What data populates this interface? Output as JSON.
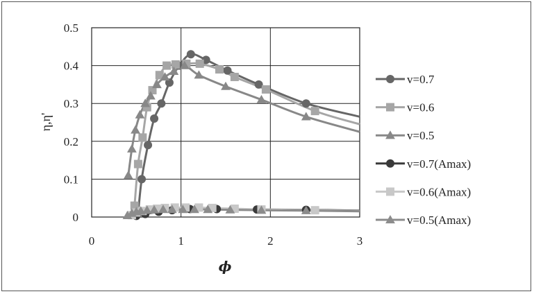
{
  "chart_data": {
    "type": "line",
    "xlabel": "ϕ",
    "ylabel": "η,η'",
    "xlim": [
      0,
      3
    ],
    "ylim": [
      0,
      0.5
    ],
    "xticks": [
      "0",
      "1",
      "2",
      "3"
    ],
    "yticks": [
      "0",
      "0.1",
      "0.2",
      "0.3",
      "0.4",
      "0.5"
    ],
    "grid": true,
    "legend": "right",
    "series": [
      {
        "name": "v=0.7",
        "color": "#666666",
        "marker": "circle",
        "x": [
          0.52,
          0.56,
          0.63,
          0.7,
          0.78,
          0.87,
          0.98,
          1.11,
          1.28,
          1.52,
          1.87,
          2.4
        ],
        "y": [
          0.01,
          0.1,
          0.19,
          0.26,
          0.3,
          0.355,
          0.4,
          0.43,
          0.415,
          0.387,
          0.35,
          0.3
        ],
        "curve_x": [
          0.52,
          0.56,
          0.63,
          0.7,
          0.78,
          0.87,
          0.98,
          1.11,
          1.28,
          1.52,
          1.87,
          2.4,
          3.0
        ],
        "curve_y": [
          0.01,
          0.1,
          0.19,
          0.26,
          0.3,
          0.355,
          0.4,
          0.43,
          0.415,
          0.387,
          0.35,
          0.3,
          0.265
        ]
      },
      {
        "name": "v=0.6",
        "color": "#a6a6a6",
        "marker": "square",
        "x": [
          0.48,
          0.52,
          0.57,
          0.62,
          0.68,
          0.76,
          0.84,
          0.94,
          1.06,
          1.21,
          1.43,
          1.6,
          1.95,
          2.5
        ],
        "y": [
          0.03,
          0.14,
          0.21,
          0.29,
          0.335,
          0.375,
          0.4,
          0.403,
          0.405,
          0.405,
          0.39,
          0.37,
          0.337,
          0.28
        ],
        "curve_x": [
          0.48,
          0.52,
          0.57,
          0.62,
          0.68,
          0.76,
          0.84,
          0.94,
          1.06,
          1.21,
          1.43,
          1.6,
          1.95,
          2.5,
          3.0
        ],
        "curve_y": [
          0.03,
          0.14,
          0.21,
          0.29,
          0.335,
          0.375,
          0.4,
          0.403,
          0.405,
          0.405,
          0.39,
          0.37,
          0.337,
          0.28,
          0.245
        ]
      },
      {
        "name": "v=0.5",
        "color": "#888888",
        "marker": "triangle",
        "x": [
          0.41,
          0.45,
          0.49,
          0.54,
          0.6,
          0.66,
          0.73,
          0.82,
          0.92,
          1.04,
          1.2,
          1.5,
          1.9,
          2.4
        ],
        "y": [
          0.11,
          0.18,
          0.23,
          0.27,
          0.3,
          0.32,
          0.35,
          0.37,
          0.385,
          0.4,
          0.375,
          0.345,
          0.31,
          0.265
        ],
        "curve_x": [
          0.41,
          0.45,
          0.49,
          0.54,
          0.6,
          0.66,
          0.73,
          0.82,
          0.92,
          1.04,
          1.2,
          1.5,
          1.9,
          2.4,
          3.0
        ],
        "curve_y": [
          0.11,
          0.18,
          0.23,
          0.27,
          0.3,
          0.32,
          0.35,
          0.37,
          0.385,
          0.4,
          0.375,
          0.345,
          0.31,
          0.265,
          0.225
        ]
      },
      {
        "name": "v=0.7(Amax)",
        "color": "#3a3a3a",
        "marker": "circle",
        "x": [
          0.5,
          0.6,
          0.75,
          0.9,
          1.1,
          1.4,
          1.85,
          2.4
        ],
        "y": [
          0.003,
          0.008,
          0.014,
          0.018,
          0.021,
          0.021,
          0.02,
          0.019
        ],
        "curve_x": [
          0.5,
          0.6,
          0.75,
          0.9,
          1.1,
          1.4,
          1.85,
          2.4,
          3.0
        ],
        "curve_y": [
          0.003,
          0.008,
          0.014,
          0.018,
          0.021,
          0.021,
          0.02,
          0.019,
          0.017
        ]
      },
      {
        "name": "v=0.6(Amax)",
        "color": "#c8c8c8",
        "marker": "square",
        "x": [
          0.45,
          0.5,
          0.57,
          0.65,
          0.73,
          0.82,
          0.93,
          1.05,
          1.2,
          1.35,
          1.6,
          1.9,
          2.5
        ],
        "y": [
          0.005,
          0.012,
          0.016,
          0.02,
          0.022,
          0.024,
          0.025,
          0.025,
          0.025,
          0.024,
          0.022,
          0.02,
          0.018
        ],
        "curve_x": [
          0.45,
          0.5,
          0.57,
          0.65,
          0.73,
          0.82,
          0.93,
          1.05,
          1.2,
          1.35,
          1.6,
          1.9,
          2.5,
          3.0
        ],
        "curve_y": [
          0.005,
          0.012,
          0.016,
          0.02,
          0.022,
          0.024,
          0.025,
          0.025,
          0.025,
          0.024,
          0.022,
          0.02,
          0.018,
          0.016
        ]
      },
      {
        "name": "v=0.5(Amax)",
        "color": "#8c8c8c",
        "marker": "triangle",
        "x": [
          0.4,
          0.45,
          0.5,
          0.55,
          0.62,
          0.7,
          0.8,
          0.9,
          1.02,
          1.15,
          1.3,
          1.55,
          1.9,
          2.4
        ],
        "y": [
          0.004,
          0.01,
          0.014,
          0.016,
          0.018,
          0.019,
          0.02,
          0.02,
          0.02,
          0.02,
          0.02,
          0.019,
          0.018,
          0.017
        ],
        "curve_x": [
          0.4,
          0.45,
          0.5,
          0.55,
          0.62,
          0.7,
          0.8,
          0.9,
          1.02,
          1.15,
          1.3,
          1.55,
          1.9,
          2.4,
          3.0
        ],
        "curve_y": [
          0.004,
          0.01,
          0.014,
          0.016,
          0.018,
          0.019,
          0.02,
          0.02,
          0.02,
          0.02,
          0.02,
          0.019,
          0.018,
          0.017,
          0.015
        ]
      }
    ]
  }
}
